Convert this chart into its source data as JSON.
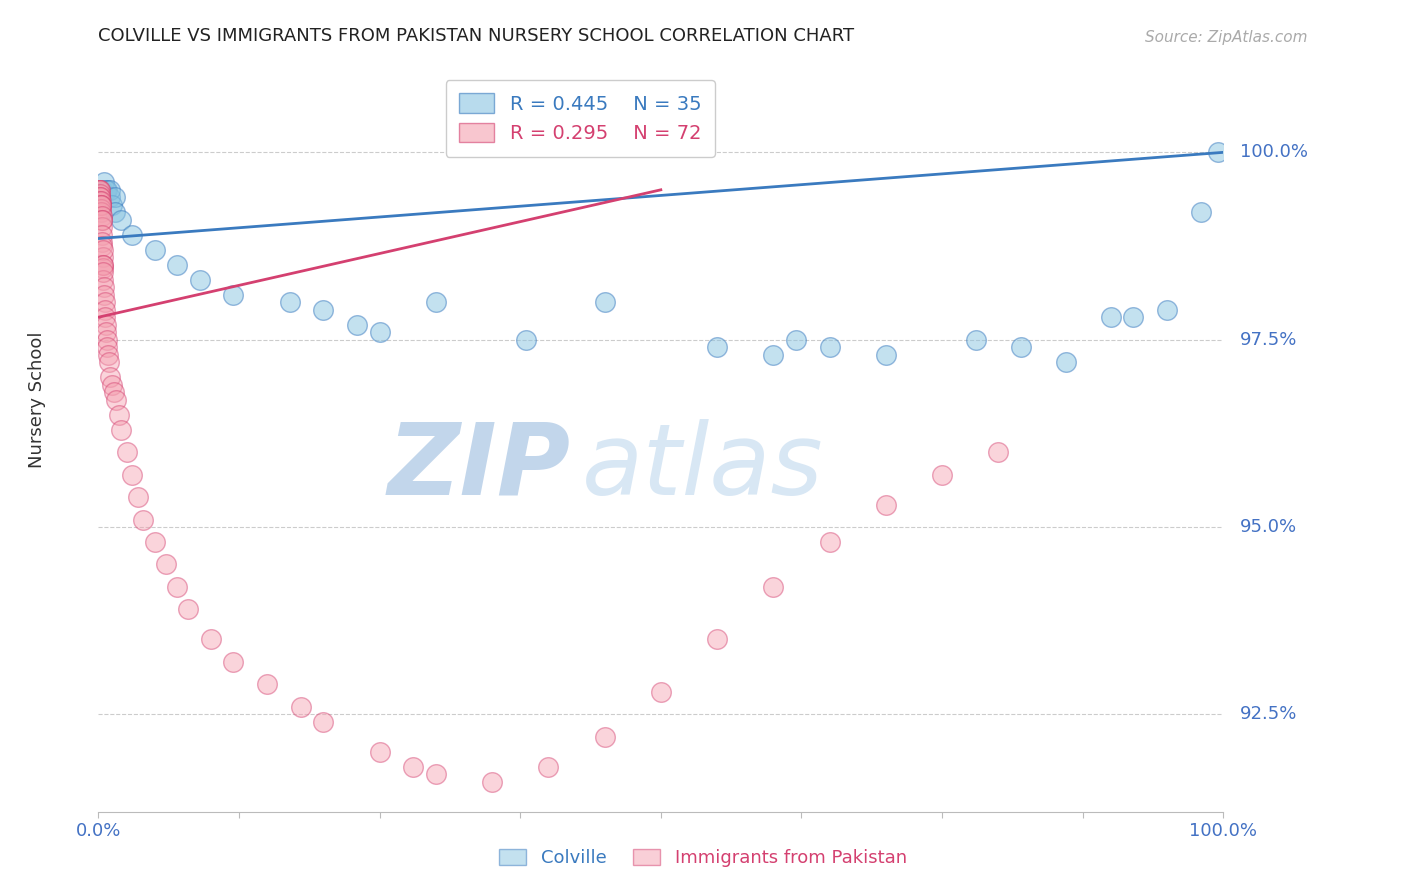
{
  "title": "COLVILLE VS IMMIGRANTS FROM PAKISTAN NURSERY SCHOOL CORRELATION CHART",
  "source": "Source: ZipAtlas.com",
  "ylabel": "Nursery School",
  "xmin": 0.0,
  "xmax": 100.0,
  "ymin": 91.2,
  "ymax": 101.2,
  "yticks": [
    92.5,
    95.0,
    97.5,
    100.0
  ],
  "ytick_labels": [
    "92.5%",
    "95.0%",
    "97.5%",
    "100.0%"
  ],
  "blue_R": 0.445,
  "blue_N": 35,
  "pink_R": 0.295,
  "pink_N": 72,
  "blue_color": "#89c4e1",
  "pink_color": "#f4a0b0",
  "blue_line_color": "#3a7abf",
  "pink_line_color": "#d44070",
  "tick_label_color": "#4472c4",
  "watermark_zip": "ZIP",
  "watermark_atlas": "atlas",
  "blue_scatter_x": [
    0.3,
    0.5,
    0.7,
    0.8,
    1.0,
    1.0,
    1.2,
    1.5,
    1.5,
    2.0,
    3.0,
    5.0,
    7.0,
    9.0,
    12.0,
    17.0,
    20.0,
    23.0,
    25.0,
    30.0,
    38.0,
    45.0,
    55.0,
    60.0,
    62.0,
    65.0,
    70.0,
    78.0,
    82.0,
    86.0,
    90.0,
    92.0,
    95.0,
    98.0,
    99.5
  ],
  "blue_scatter_y": [
    99.5,
    99.6,
    99.5,
    99.5,
    99.4,
    99.5,
    99.3,
    99.4,
    99.2,
    99.1,
    98.9,
    98.7,
    98.5,
    98.3,
    98.1,
    98.0,
    97.9,
    97.7,
    97.6,
    98.0,
    97.5,
    98.0,
    97.4,
    97.3,
    97.5,
    97.4,
    97.3,
    97.5,
    97.4,
    97.2,
    97.8,
    97.8,
    97.9,
    99.2,
    100.0
  ],
  "pink_scatter_x": [
    0.05,
    0.08,
    0.1,
    0.12,
    0.12,
    0.15,
    0.15,
    0.18,
    0.18,
    0.2,
    0.2,
    0.22,
    0.22,
    0.25,
    0.25,
    0.28,
    0.28,
    0.3,
    0.3,
    0.32,
    0.35,
    0.35,
    0.38,
    0.38,
    0.4,
    0.42,
    0.42,
    0.45,
    0.45,
    0.5,
    0.5,
    0.55,
    0.58,
    0.6,
    0.65,
    0.7,
    0.75,
    0.8,
    0.85,
    0.9,
    1.0,
    1.2,
    1.4,
    1.6,
    1.8,
    2.0,
    2.5,
    3.0,
    3.5,
    4.0,
    5.0,
    6.0,
    7.0,
    8.0,
    10.0,
    12.0,
    15.0,
    18.0,
    20.0,
    25.0,
    28.0,
    30.0,
    35.0,
    40.0,
    45.0,
    50.0,
    55.0,
    60.0,
    65.0,
    70.0,
    75.0,
    80.0
  ],
  "pink_scatter_y": [
    99.5,
    99.5,
    99.5,
    99.5,
    99.4,
    99.4,
    99.45,
    99.4,
    99.35,
    99.3,
    99.35,
    99.3,
    99.25,
    99.2,
    99.3,
    99.15,
    99.1,
    99.0,
    99.1,
    98.9,
    98.8,
    98.75,
    98.6,
    98.7,
    98.5,
    98.45,
    98.5,
    98.3,
    98.4,
    98.2,
    98.1,
    98.0,
    97.9,
    97.8,
    97.7,
    97.6,
    97.5,
    97.4,
    97.3,
    97.2,
    97.0,
    96.9,
    96.8,
    96.7,
    96.5,
    96.3,
    96.0,
    95.7,
    95.4,
    95.1,
    94.8,
    94.5,
    94.2,
    93.9,
    93.5,
    93.2,
    92.9,
    92.6,
    92.4,
    92.0,
    91.8,
    91.7,
    91.6,
    91.8,
    92.2,
    92.8,
    93.5,
    94.2,
    94.8,
    95.3,
    95.7,
    96.0
  ],
  "blue_trend_x": [
    0.0,
    100.0
  ],
  "blue_trend_y_start": 98.85,
  "blue_trend_y_end": 100.0,
  "pink_trend_x": [
    0.0,
    50.0
  ],
  "pink_trend_y_start": 97.8,
  "pink_trend_y_end": 99.5
}
